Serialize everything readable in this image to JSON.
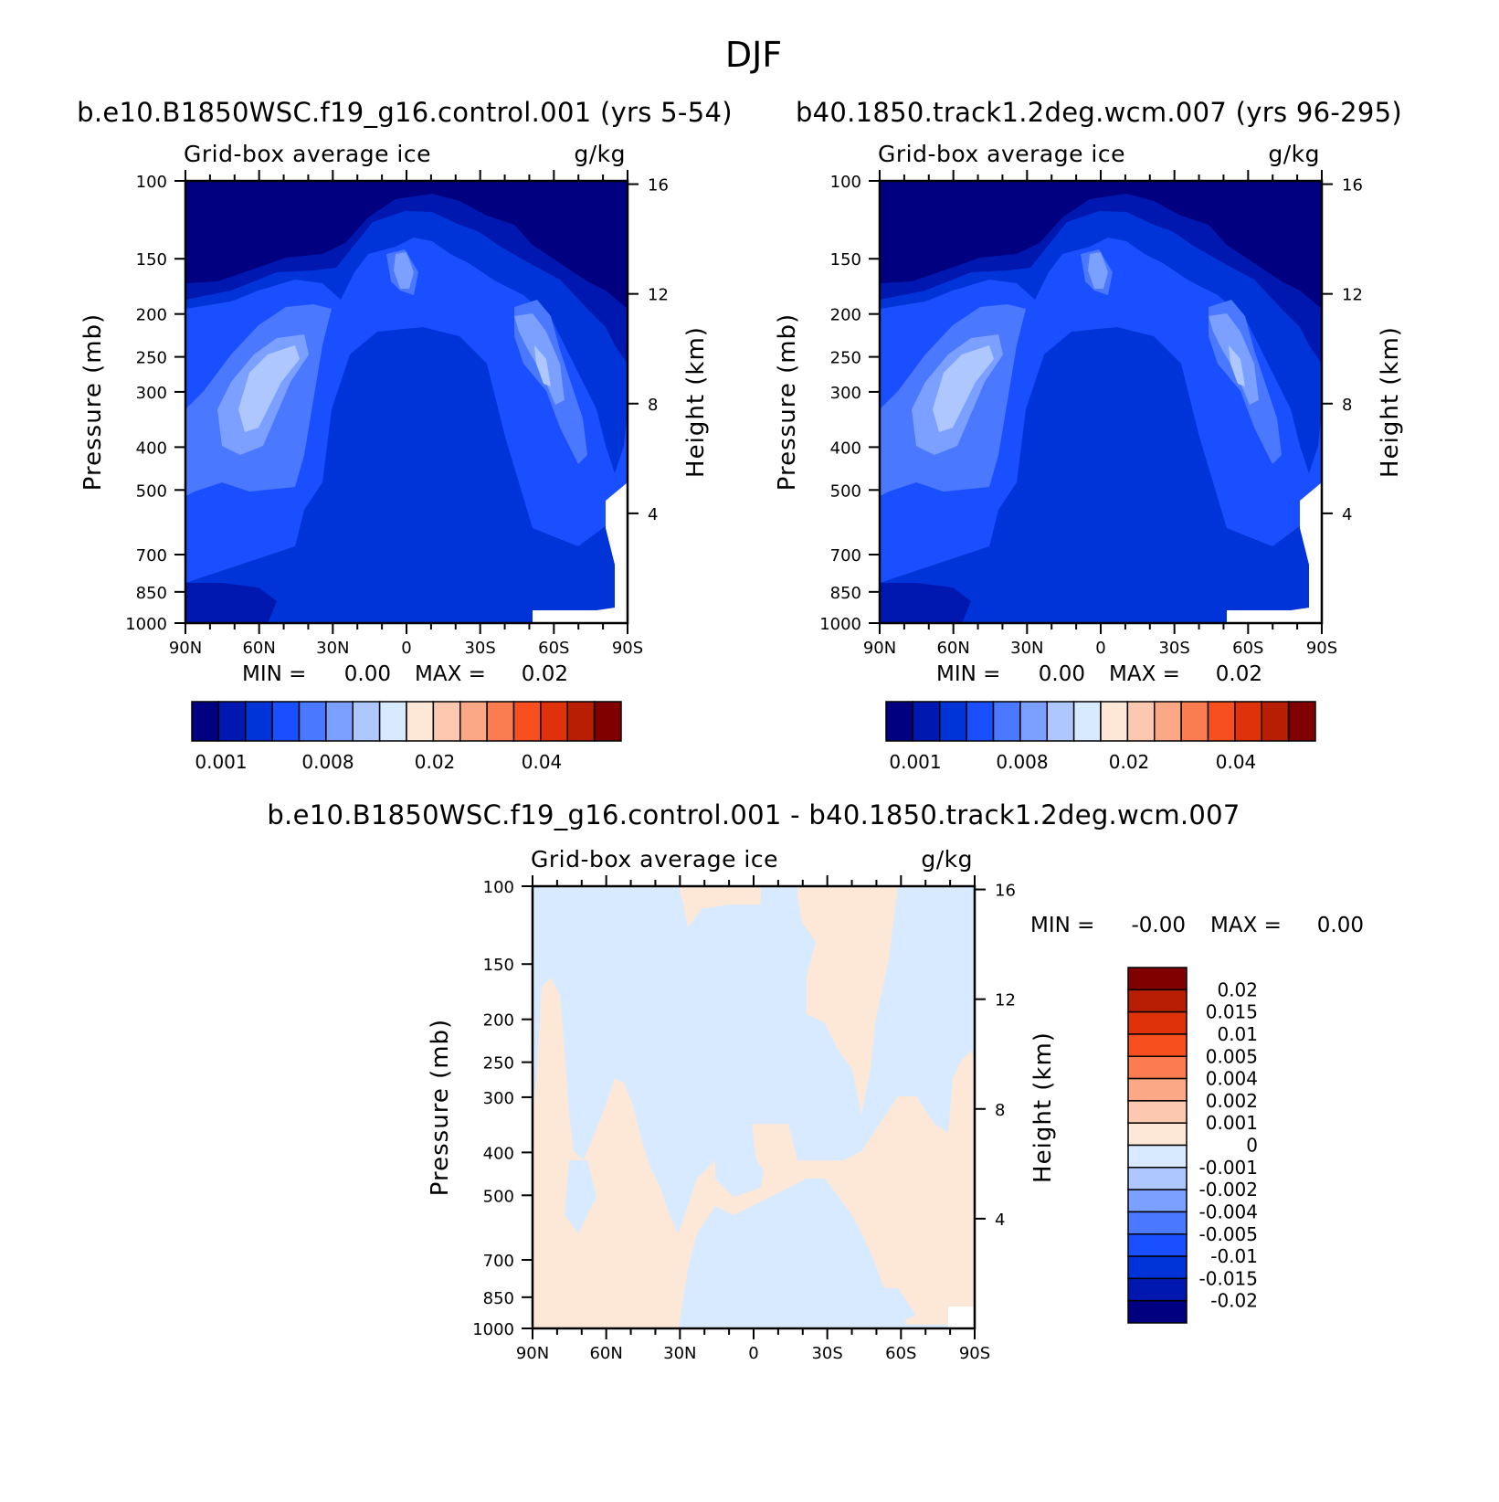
{
  "title": "DJF",
  "variable_label": "Grid-box average ice",
  "units_label": "g/kg",
  "ylabel_left": "Pressure (mb)",
  "ylabel_right": "Height (km)",
  "colors": {
    "seq": [
      "#000080",
      "#0018b0",
      "#0034d8",
      "#1a4fff",
      "#4a78ff",
      "#7ca0ff",
      "#aec8ff",
      "#d8eaff",
      "#fde8d8",
      "#fcc8b0",
      "#fba886",
      "#fb7c50",
      "#f84f1e",
      "#e0320a",
      "#b71e04",
      "#800000"
    ],
    "diff": [
      "#000080",
      "#0018b0",
      "#0034d8",
      "#1a4fff",
      "#4a78ff",
      "#7ca0ff",
      "#aec8ff",
      "#d8eaff",
      "#fde8d8",
      "#fcc8b0",
      "#fba886",
      "#fb7c50",
      "#f84f1e",
      "#e0320a",
      "#b71e04",
      "#800000"
    ]
  },
  "panels": [
    {
      "title": "b.e10.B1850WSC.f19_g16.control.001 (yrs 5-54)",
      "min_label": "MIN =",
      "min_value": "0.00",
      "max_label": "MAX =",
      "max_value": "0.02"
    },
    {
      "title": "b40.1850.track1.2deg.wcm.007 (yrs 96-295)",
      "min_label": "MIN =",
      "min_value": "0.00",
      "max_label": "MAX =",
      "max_value": "0.02"
    },
    {
      "title": "b.e10.B1850WSC.f19_g16.control.001 - b40.1850.track1.2deg.wcm.007",
      "min_label": "MIN =",
      "min_value": "-0.00",
      "max_label": "MAX =",
      "max_value": "0.00"
    }
  ],
  "seq_colorbar_labels": [
    "0.001",
    "0.008",
    "0.02",
    "0.04"
  ],
  "diff_colorbar_labels": [
    "0.02",
    "0.015",
    "0.01",
    "0.005",
    "0.004",
    "0.002",
    "0.001",
    "0",
    "-0.001",
    "-0.002",
    "-0.004",
    "-0.005",
    "-0.01",
    "-0.015",
    "-0.02"
  ],
  "chart_data": [
    {
      "type": "heatmap",
      "title": "b.e10.B1850WSC.f19_g16.control.001 (yrs 5-54)",
      "subtitle": "Grid-box average ice",
      "units": "g/kg",
      "xlabel": "",
      "ylabel": "Pressure (mb)",
      "ylabel_right": "Height (km)",
      "x_ticks": [
        "90N",
        "60N",
        "30N",
        "0",
        "30S",
        "60S",
        "90S"
      ],
      "y_ticks": [
        100,
        150,
        200,
        250,
        300,
        400,
        500,
        700,
        850,
        1000
      ],
      "y_right_ticks": [
        16,
        12,
        8,
        4
      ],
      "ylim": [
        1000,
        100
      ],
      "contour_levels": [
        "0.001",
        "0.008",
        "0.02",
        "0.04"
      ],
      "min": "0.00",
      "max": "0.02"
    },
    {
      "type": "heatmap",
      "title": "b40.1850.track1.2deg.wcm.007 (yrs 96-295)",
      "subtitle": "Grid-box average ice",
      "units": "g/kg",
      "ylabel": "Pressure (mb)",
      "ylabel_right": "Height (km)",
      "x_ticks": [
        "90N",
        "60N",
        "30N",
        "0",
        "30S",
        "60S",
        "90S"
      ],
      "y_ticks": [
        100,
        150,
        200,
        250,
        300,
        400,
        500,
        700,
        850,
        1000
      ],
      "y_right_ticks": [
        16,
        12,
        8,
        4
      ],
      "ylim": [
        1000,
        100
      ],
      "contour_levels": [
        "0.001",
        "0.008",
        "0.02",
        "0.04"
      ],
      "min": "0.00",
      "max": "0.02"
    },
    {
      "type": "heatmap",
      "title": "b.e10.B1850WSC.f19_g16.control.001 - b40.1850.track1.2deg.wcm.007",
      "subtitle": "Grid-box average ice",
      "units": "g/kg",
      "ylabel": "Pressure (mb)",
      "ylabel_right": "Height (km)",
      "x_ticks": [
        "90N",
        "60N",
        "30N",
        "0",
        "30S",
        "60S",
        "90S"
      ],
      "y_ticks": [
        100,
        150,
        200,
        250,
        300,
        400,
        500,
        700,
        850,
        1000
      ],
      "y_right_ticks": [
        16,
        12,
        8,
        4
      ],
      "ylim": [
        1000,
        100
      ],
      "contour_levels": [
        "0.02",
        "0.015",
        "0.01",
        "0.005",
        "0.004",
        "0.002",
        "0.001",
        "0",
        "-0.001",
        "-0.002",
        "-0.004",
        "-0.005",
        "-0.01",
        "-0.015",
        "-0.02"
      ],
      "min": "-0.00",
      "max": "0.00"
    }
  ]
}
